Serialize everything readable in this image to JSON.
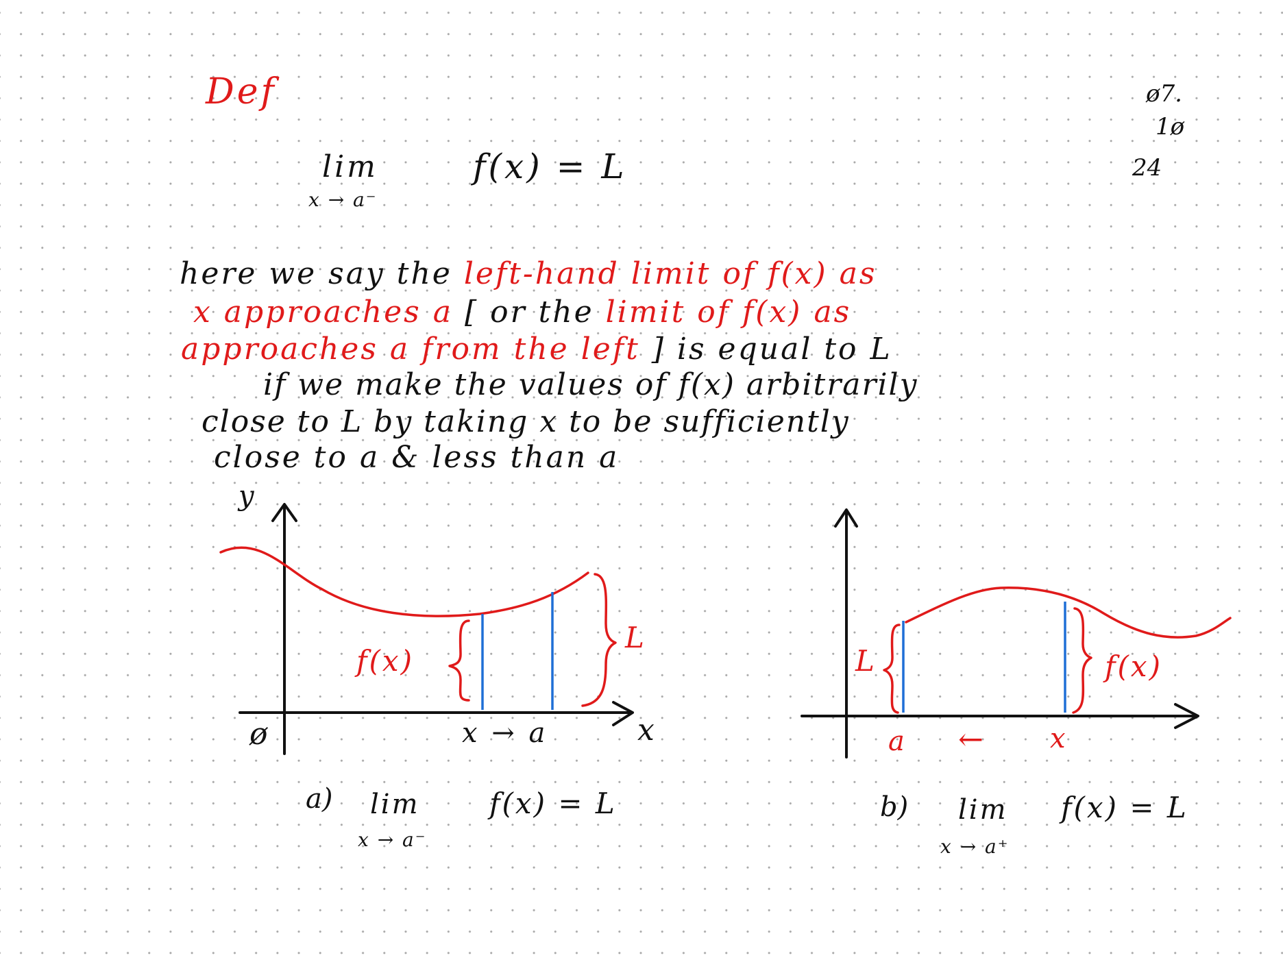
{
  "heading": "Def",
  "page_number": {
    "line1": "ø7.",
    "line2": "1ø",
    "line3": "24"
  },
  "definition": {
    "lim": "lim",
    "subscript": "x → a⁻",
    "expression": "f(x)  =  L"
  },
  "paragraph": {
    "line1": [
      {
        "text": "here  we  say   the ",
        "color": "black"
      },
      {
        "text": "left-hand  limit  of  f(x)  as",
        "color": "red"
      }
    ],
    "line2": [
      {
        "text": "x  approaches  a ",
        "color": "red"
      },
      {
        "text": " [  or   the ",
        "color": "black"
      },
      {
        "text": "limit   of  f(x)  as",
        "color": "red"
      }
    ],
    "line3": [
      {
        "text": "approaches  a   from   the  left",
        "color": "red"
      },
      {
        "text": " ]  is   equal    to  L",
        "color": "black"
      }
    ],
    "line4": "if  we  make   the  values  of  f(x)   arbitrarily",
    "line5": "close   to   L   by   taking  x   to    be  sufficiently",
    "line6": "close   to    a    &  less    than   a"
  },
  "graph_a": {
    "y_axis_label": "y",
    "x_axis_label": "x",
    "origin_label": "ø",
    "fx_label": "f(x)",
    "L_label": "L",
    "approach_label": "x → a",
    "caption_prefix": "a)",
    "caption_lim": "lim",
    "caption_sub": "x → a⁻",
    "caption_expr": "f(x) =  L"
  },
  "graph_b": {
    "L_label": "L",
    "fx_label": "f(x)",
    "a_label": "a",
    "arrow_label": "←",
    "x_label": "x",
    "caption_prefix": "b)",
    "caption_lim": "lim",
    "caption_sub": "x → a⁺",
    "caption_expr": "f(x) =  L"
  },
  "colors": {
    "ink": "#111111",
    "red": "#e01a1a",
    "blue": "#1f6fd6",
    "grid": "#a8a8a8"
  }
}
